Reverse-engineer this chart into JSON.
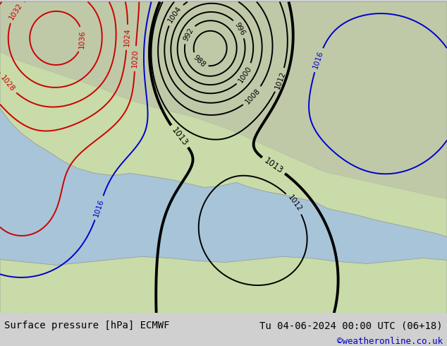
{
  "title_left": "Surface pressure [hPa] ECMWF",
  "title_right": "Tu 04-06-2024 00:00 UTC (06+18)",
  "copyright": "©weatheronline.co.uk",
  "bg_color": "#d0d0d0",
  "footer_bg": "#e8e8e8",
  "text_color_black": "#000000",
  "text_color_blue": "#0000cc",
  "text_color_red": "#cc0000",
  "font_size_footer": 10,
  "ocean_color": "#a8c4d8",
  "land_color": "#c8dba8",
  "land_color2": "#c0d090",
  "grey_color": "#b8b8a8"
}
